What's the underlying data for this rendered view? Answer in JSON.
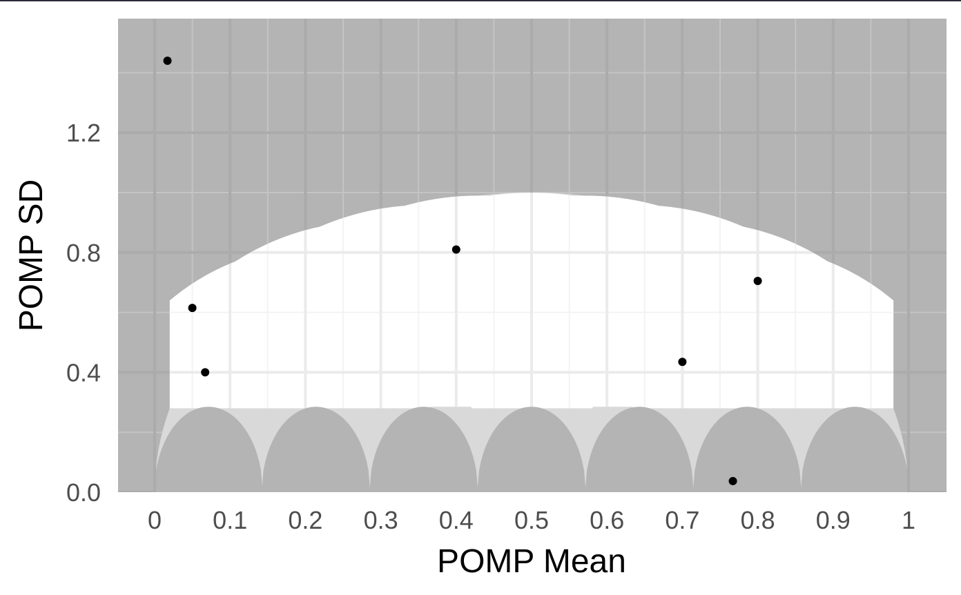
{
  "chart_data": {
    "type": "scatter",
    "title": "",
    "xlabel": "POMP Mean",
    "ylabel": "POMP SD",
    "xlim": [
      -0.05,
      1.05
    ],
    "ylim": [
      0,
      1.58
    ],
    "x_ticks": [
      0,
      0.1,
      0.2,
      0.3,
      0.4,
      0.5,
      0.6,
      0.7,
      0.8,
      0.9,
      1
    ],
    "x_tick_labels": [
      "0",
      "0.1",
      "0.2",
      "0.3",
      "0.4",
      "0.5",
      "0.6",
      "0.7",
      "0.8",
      "0.9",
      "1"
    ],
    "y_ticks": [
      0,
      0.4,
      0.8,
      1.2
    ],
    "y_tick_labels": [
      "0.0",
      "0.4",
      "0.8",
      "1.2"
    ],
    "grid": true,
    "points": [
      {
        "x": 0.017,
        "y": 1.44
      },
      {
        "x": 0.05,
        "y": 0.615
      },
      {
        "x": 0.067,
        "y": 0.4
      },
      {
        "x": 0.4,
        "y": 0.81
      },
      {
        "x": 0.7,
        "y": 0.435
      },
      {
        "x": 0.767,
        "y": 0.037
      },
      {
        "x": 0.8,
        "y": 0.705
      }
    ],
    "colors": {
      "impossible_region": "#b4b4b4",
      "boundary_region": "#d9d9d9",
      "feasible_region": "#ffffff",
      "grid_major": "#ababab",
      "grid_minor": "#c4c4c4",
      "grid_major_white": "#ebebeb",
      "point": "#000000"
    }
  }
}
